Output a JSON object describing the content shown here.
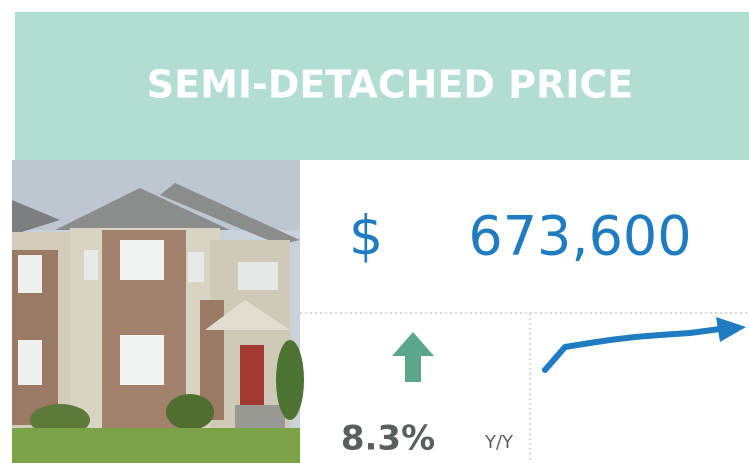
{
  "header": {
    "title": "SEMI-DETACHED PRICE"
  },
  "price": {
    "currency": "$",
    "amount": "673,600"
  },
  "change": {
    "value": "8.3%",
    "period": "Y/Y"
  }
}
